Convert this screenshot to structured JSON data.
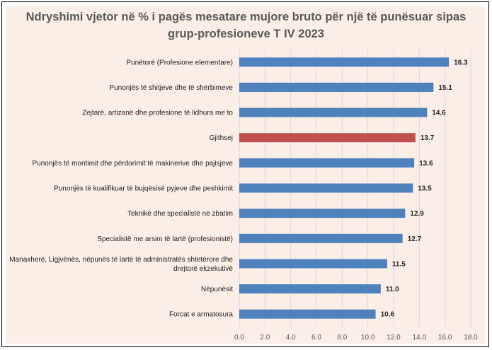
{
  "chart_data": {
    "type": "bar",
    "orientation": "horizontal",
    "title_lines": [
      "Ndryshimi vjetor në % i pagës mesatare mujore bruto për një të punësuar sipas",
      "grup-profesioneve T IV 2023"
    ],
    "categories": [
      [
        "Punëtorë (Profesione elementare)"
      ],
      [
        "Punonjës të shitjeve dhe të shërbimeve"
      ],
      [
        "Zejtarë, artizanë dhe profesione të lidhura me to"
      ],
      [
        "Gjithsej"
      ],
      [
        "Punonjës të montimit dhe përdorimit të makinerive dhe pajisjeve"
      ],
      [
        "Punonjës të kualifikuar të bujqësisë pyjeve dhe peshkimit"
      ],
      [
        "Teknikë dhe specialistë në zbatim"
      ],
      [
        "Specialistë me arsim të lartë (profesionistë)"
      ],
      [
        "Manaxherë, Ligjvënës, nëpunës të lartë të administratës shtetërore dhe",
        "drejtorë ekzekutivë"
      ],
      [
        "Nëpunësit"
      ],
      [
        "Forcat e armatosura"
      ]
    ],
    "values": [
      16.3,
      15.1,
      14.6,
      13.7,
      13.6,
      13.5,
      12.9,
      12.7,
      11.5,
      11.0,
      10.6
    ],
    "value_labels": [
      "16.3",
      "15.1",
      "14.6",
      "13.7",
      "13.6",
      "13.5",
      "12.9",
      "12.7",
      "11.5",
      "11.0",
      "10.6"
    ],
    "highlight_index": 3,
    "xlim": [
      0,
      18
    ],
    "x_ticks": [
      "0.0",
      "2.0",
      "4.0",
      "6.0",
      "8.0",
      "10.0",
      "12.0",
      "14.0",
      "16.0",
      "18.0"
    ],
    "x_tick_values": [
      0,
      2,
      4,
      6,
      8,
      10,
      12,
      14,
      16,
      18
    ],
    "grid": true,
    "colors": {
      "bar": "#4f81bd",
      "highlight": "#c0504d",
      "background": "#fbeee7",
      "grid": "#d9d9d9"
    }
  }
}
